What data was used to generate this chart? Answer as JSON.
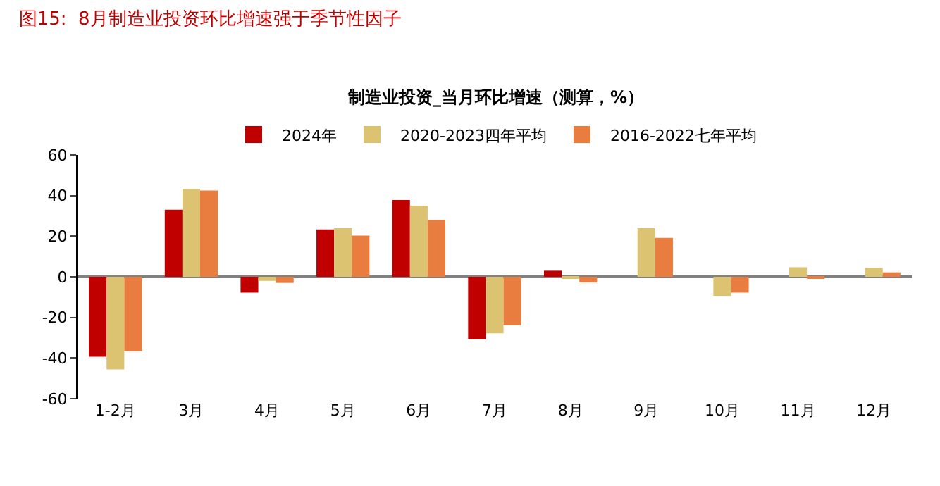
{
  "chart_data": {
    "type": "bar",
    "title": "图15:  8月制造业投资环比增速强于季节性因子",
    "subtitle": "制造业投资_当月环比增速（测算，%）",
    "categories": [
      "1-2月",
      "3月",
      "4月",
      "5月",
      "6月",
      "7月",
      "8月",
      "9月",
      "10月",
      "11月",
      "12月"
    ],
    "series": [
      {
        "name": "2024年",
        "color": "#c00000",
        "values": [
          -39.4,
          33,
          -7.8,
          23.3,
          37.8,
          -30.8,
          3,
          null,
          null,
          null,
          null
        ]
      },
      {
        "name": "2020-2023四年平均",
        "color": "#dbc372",
        "values": [
          -45.6,
          43.3,
          -2,
          23.9,
          35,
          -27.8,
          -0.5,
          23.9,
          -9.4,
          4.7,
          4.4
        ]
      },
      {
        "name": "2016-2022七年平均",
        "color": "#e97c3f",
        "values": [
          -36.7,
          42.5,
          -3,
          20.3,
          28,
          -23.9,
          -2.8,
          19.2,
          -7.8,
          -0.8,
          2.2
        ]
      }
    ],
    "ylim": [
      -60,
      60
    ],
    "yticks": [
      -60,
      -40,
      -20,
      0,
      20,
      40,
      60
    ],
    "legend": "top"
  }
}
